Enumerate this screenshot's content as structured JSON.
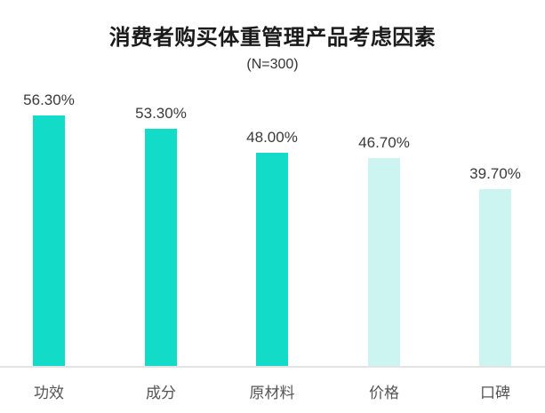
{
  "chart_data": {
    "type": "bar",
    "title": "消费者购买体重管理产品考虑因素",
    "subtitle": "(N=300)",
    "categories": [
      "功效",
      "成分",
      "原材料",
      "价格",
      "口碑"
    ],
    "values": [
      56.3,
      53.3,
      48.0,
      46.7,
      39.7
    ],
    "value_labels": [
      "56.30%",
      "53.30%",
      "48.00%",
      "46.70%",
      "39.70%"
    ],
    "colors": [
      "#12dbc8",
      "#12dbc8",
      "#12dbc8",
      "#ccf5f2",
      "#ccf5f2"
    ],
    "xlabel": "",
    "ylabel": "",
    "ylim": [
      0,
      60
    ],
    "grid": false,
    "legend": false
  }
}
